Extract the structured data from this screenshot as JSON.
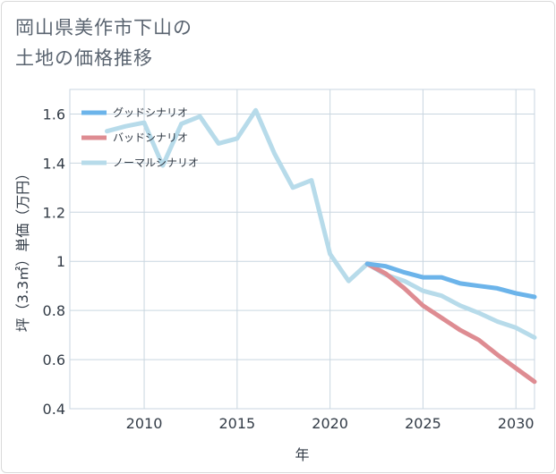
{
  "title_lines": [
    "岡山県美作市下山の",
    "土地の価格推移"
  ],
  "chart_data": {
    "type": "line",
    "title": "岡山県美作市下山の土地の価格推移",
    "xlabel": "年",
    "ylabel": "坪（3.3㎡）単価（万円）",
    "xlim": [
      2006,
      2031
    ],
    "ylim": [
      0.4,
      1.7
    ],
    "x_ticks": [
      2010,
      2015,
      2020,
      2025,
      2030
    ],
    "y_ticks": [
      0.4,
      0.6,
      0.8,
      1.0,
      1.2,
      1.4,
      1.6
    ],
    "y_tick_labels": [
      "0.4",
      "0.6",
      "0.8",
      "1",
      "1.2",
      "1.4",
      "1.6"
    ],
    "grid": true,
    "legend_position": "top-left",
    "series": [
      {
        "name": "グッドシナリオ",
        "color": "#6cb4ea",
        "x": [
          2022,
          2023,
          2024,
          2025,
          2026,
          2027,
          2028,
          2029,
          2030,
          2031
        ],
        "y": [
          0.99,
          0.98,
          0.955,
          0.935,
          0.935,
          0.91,
          0.9,
          0.89,
          0.87,
          0.855
        ]
      },
      {
        "name": "バッドシナリオ",
        "color": "#de8c92",
        "x": [
          2022,
          2023,
          2024,
          2025,
          2026,
          2027,
          2028,
          2029,
          2030,
          2031
        ],
        "y": [
          0.99,
          0.95,
          0.89,
          0.82,
          0.77,
          0.72,
          0.68,
          0.62,
          0.565,
          0.51
        ]
      },
      {
        "name": "ノーマルシナリオ",
        "color": "#b7dbea",
        "x": [
          2008,
          2009,
          2010,
          2011,
          2012,
          2013,
          2014,
          2015,
          2016,
          2017,
          2018,
          2019,
          2020,
          2021,
          2022,
          2023,
          2024,
          2025,
          2026,
          2027,
          2028,
          2029,
          2030,
          2031
        ],
        "y": [
          1.53,
          1.55,
          1.565,
          1.39,
          1.56,
          1.59,
          1.48,
          1.5,
          1.615,
          1.44,
          1.3,
          1.33,
          1.03,
          0.92,
          0.99,
          0.945,
          0.92,
          0.88,
          0.86,
          0.82,
          0.79,
          0.755,
          0.73,
          0.69
        ]
      }
    ]
  }
}
